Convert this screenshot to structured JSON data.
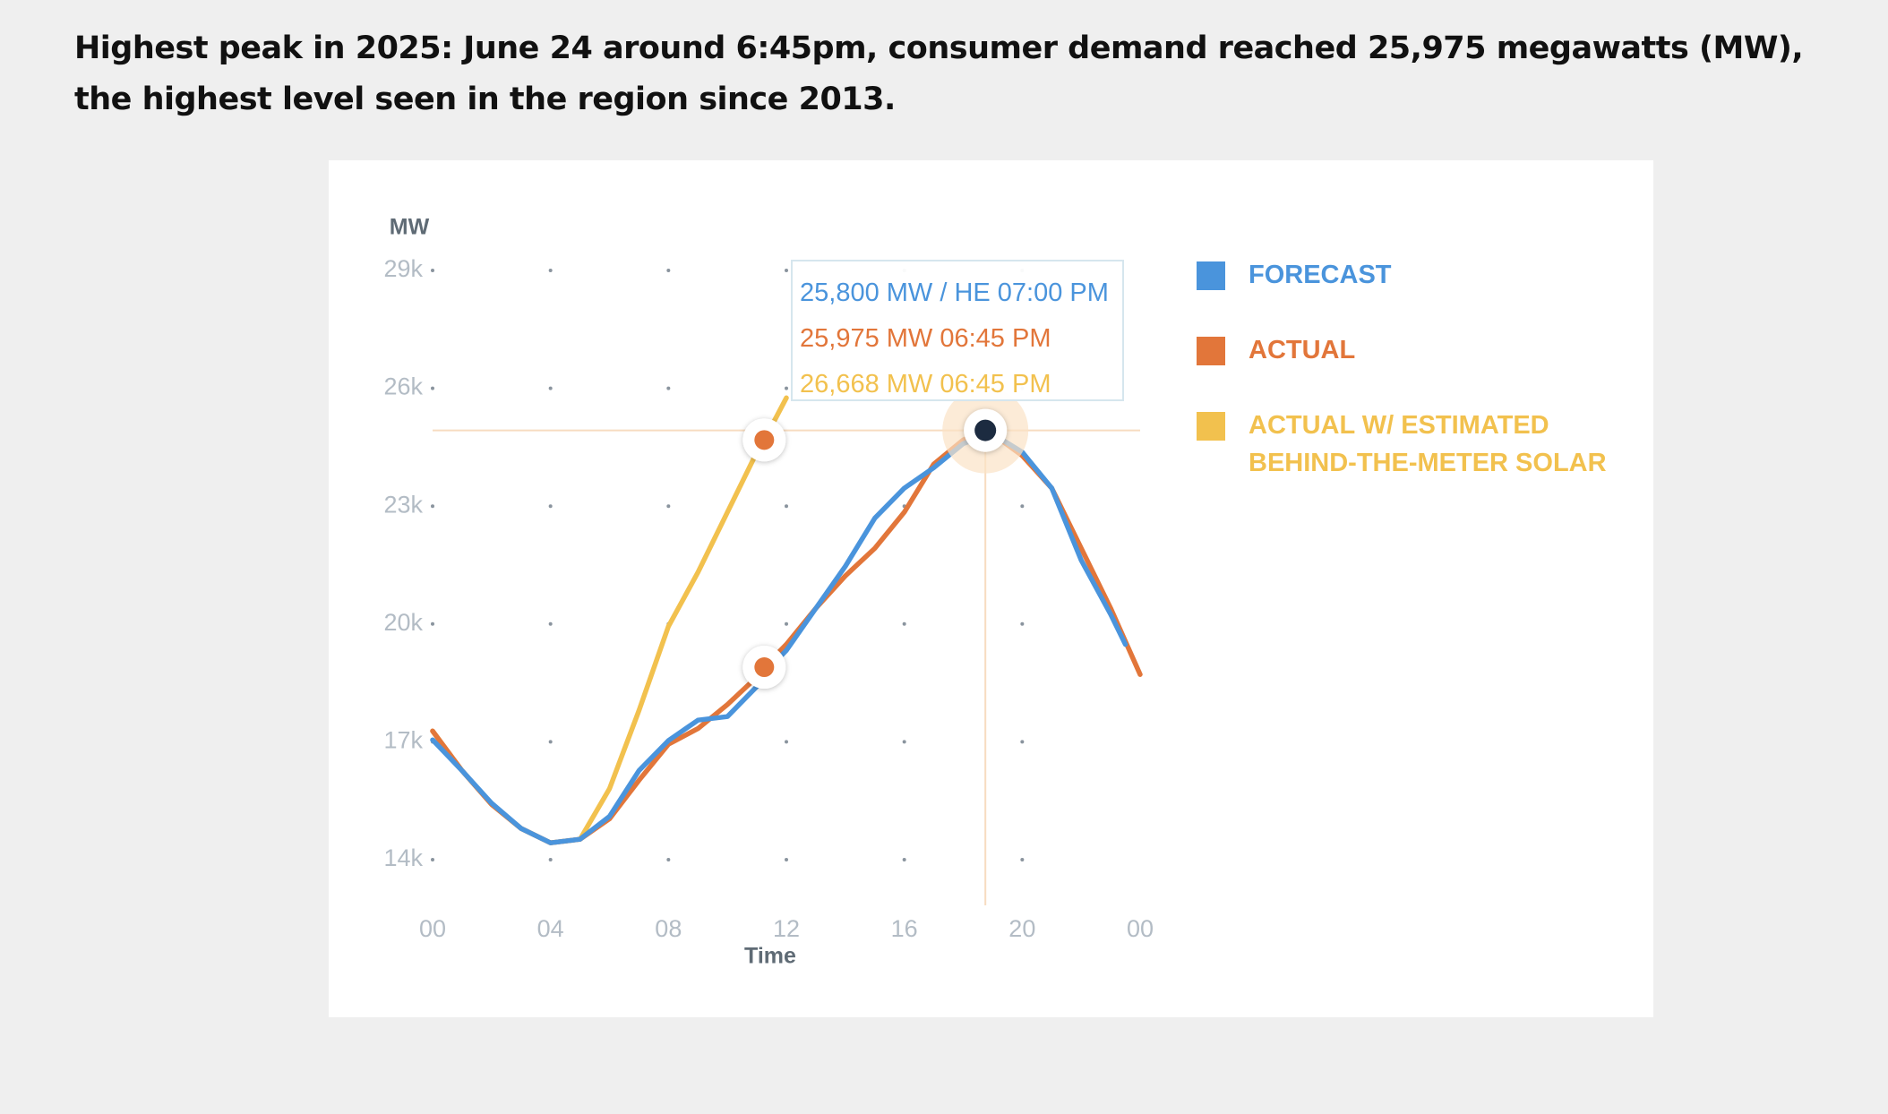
{
  "heading": "Highest peak in 2025: June 24 around 6:45pm, consumer demand reached 25,975 megawatts (MW), the highest level seen in the region since 2013.",
  "chart_data": {
    "type": "line",
    "y_label": "MW",
    "x_label": "Time",
    "x": [
      0,
      1,
      2,
      3,
      4,
      5,
      6,
      7,
      8,
      9,
      10,
      11,
      11.25,
      12,
      13,
      14,
      15,
      16,
      17,
      18,
      18.75,
      19,
      20,
      21,
      22,
      23,
      23.5,
      24
    ],
    "series": [
      {
        "name": "FORECAST",
        "color": "#4a94dc",
        "values": [
          17050,
          16265,
          15439,
          14796,
          14429,
          14520,
          15102,
          16265,
          17031,
          17551,
          17643,
          18408,
          18750,
          19327,
          20398,
          21469,
          22694,
          23459,
          23980,
          24592,
          24800,
          24837,
          24378,
          23459,
          21622,
          20245,
          19480,
          null
        ]
      },
      {
        "name": "ACTUAL",
        "color": "#e2763a",
        "values": [
          17275,
          16265,
          15408,
          14796,
          14429,
          14520,
          15040,
          16020,
          16939,
          17337,
          17949,
          18653,
          18900,
          19480,
          20398,
          21224,
          21929,
          22847,
          24071,
          24684,
          24929,
          24837,
          24286,
          23459,
          21929,
          20398,
          19560,
          18714
        ]
      },
      {
        "name": "ACTUAL W/ ESTIMATED BEHIND-THE-METER SOLAR",
        "color": "#f2c14e",
        "values": [
          17275,
          16265,
          15408,
          14796,
          14429,
          14520,
          15806,
          17796,
          19939,
          21316,
          22847,
          24378,
          24684,
          25755,
          null,
          null,
          null,
          null,
          null,
          null,
          null,
          null,
          null,
          null,
          null,
          null,
          null,
          null
        ]
      }
    ],
    "tooltip": [
      "25,800 MW / HE 07:00 PM",
      "25,975 MW 06:45 PM",
      "26,668 MW 06:45 PM"
    ],
    "xlim": [
      0,
      24
    ],
    "xticks": [
      {
        "value": 0,
        "label": "00"
      },
      {
        "value": 4,
        "label": "04"
      },
      {
        "value": 8,
        "label": "08"
      },
      12,
      16,
      20,
      {
        "value": 24,
        "label": "00"
      }
    ],
    "ylim": [
      14000,
      29000
    ],
    "yticks": [
      {
        "value": 14000,
        "label": "14k"
      },
      {
        "value": 17000,
        "label": "17k"
      },
      {
        "value": 20000,
        "label": "20k"
      },
      {
        "value": 23000,
        "label": "23k"
      },
      {
        "value": 26000,
        "label": "26k"
      },
      {
        "value": 29000,
        "label": "29k"
      }
    ],
    "grid": true
  }
}
